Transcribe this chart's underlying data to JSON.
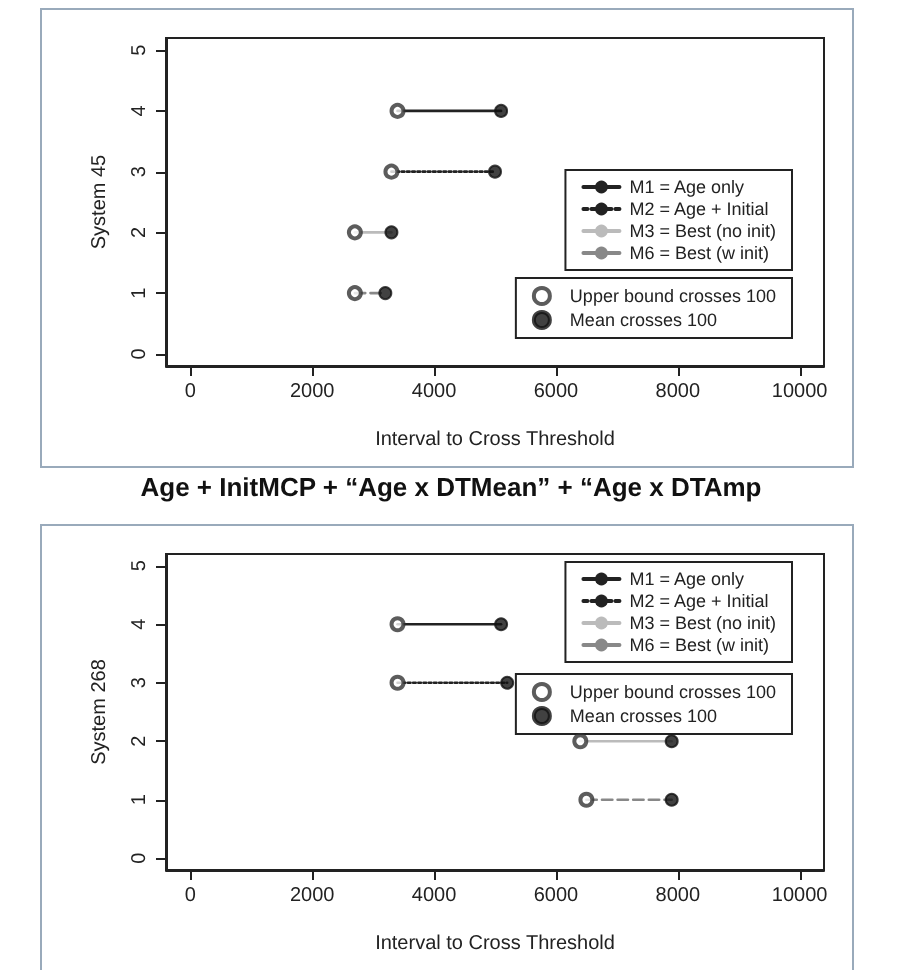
{
  "chart_data": [
    {
      "type": "line",
      "xlabel": "Interval to Cross Threshold",
      "ylabel": "System 45",
      "xlim": [
        -400,
        10400
      ],
      "xticks": [
        0,
        2000,
        4000,
        6000,
        8000,
        10000
      ],
      "ylim": [
        -0.2,
        5.2
      ],
      "yticks": [
        0,
        1,
        2,
        3,
        4,
        5
      ],
      "grid": false,
      "legend": "right",
      "series": [
        {
          "name": "M1 = Age only",
          "color": "#222222",
          "line_style": "solid",
          "marker": "none",
          "x": [
            3400,
            5100
          ],
          "values": [
            4,
            4
          ]
        },
        {
          "name": "M2 = Age + Initial",
          "color": "#222222",
          "line_style": "dotted",
          "marker": "none",
          "x": [
            3300,
            5000
          ],
          "values": [
            3,
            3
          ]
        },
        {
          "name": "M3 = Best (no init)",
          "color": "#bbbbbb",
          "line_style": "solid",
          "marker": "none",
          "x": [
            2700,
            3300
          ],
          "values": [
            2,
            2
          ]
        },
        {
          "name": "M6 = Best (w init)",
          "color": "#888888",
          "line_style": "dashed",
          "marker": "none",
          "x": [
            2700,
            3200
          ],
          "values": [
            1,
            1
          ]
        },
        {
          "name": "Upper bound crosses 100",
          "type": "scatter",
          "color": "#333333",
          "marker": "circle",
          "x": [
            3400,
            3300,
            2700,
            2700
          ],
          "values": [
            4,
            3,
            2,
            1
          ]
        },
        {
          "name": "Mean crosses 100",
          "type": "scatter",
          "color": "#111111",
          "marker": "circle",
          "x": [
            5100,
            5000,
            3300,
            3200
          ],
          "values": [
            4,
            3,
            2,
            1
          ]
        }
      ]
    },
    {
      "type": "line",
      "xlabel": "Interval to Cross Threshold",
      "ylabel": "System 268",
      "annotations": [
        "Age + InitMCP + “Age x DTMean” + “Age x DTAmp"
      ],
      "xlim": [
        -400,
        10400
      ],
      "xticks": [
        0,
        2000,
        4000,
        6000,
        8000,
        10000
      ],
      "ylim": [
        -0.2,
        5.2
      ],
      "yticks": [
        0,
        1,
        2,
        3,
        4,
        5
      ],
      "grid": false,
      "legend": "top right",
      "series": [
        {
          "name": "M1 = Age only",
          "color": "#222222",
          "line_style": "solid",
          "marker": "none",
          "x": [
            3400,
            5100
          ],
          "values": [
            4,
            4
          ]
        },
        {
          "name": "M2 = Age + Initial",
          "color": "#222222",
          "line_style": "dotted",
          "marker": "none",
          "x": [
            3400,
            5200
          ],
          "values": [
            3,
            3
          ]
        },
        {
          "name": "M3 = Best (no init)",
          "color": "#bbbbbb",
          "line_style": "solid",
          "marker": "none",
          "x": [
            6400,
            7900
          ],
          "values": [
            2,
            2
          ]
        },
        {
          "name": "M6 = Best (w init)",
          "color": "#888888",
          "line_style": "dashed",
          "marker": "none",
          "x": [
            6500,
            7900
          ],
          "values": [
            1,
            1
          ]
        },
        {
          "name": "Upper bound crosses 100",
          "type": "scatter",
          "color": "#333333",
          "marker": "circle",
          "x": [
            3400,
            3400,
            6400,
            6500
          ],
          "values": [
            4,
            3,
            2,
            1
          ]
        },
        {
          "name": "Mean crosses 100",
          "type": "scatter",
          "color": "#111111",
          "marker": "circle",
          "x": [
            5100,
            5200,
            7900,
            7900
          ],
          "values": [
            4,
            3,
            2,
            1
          ]
        }
      ]
    }
  ]
}
